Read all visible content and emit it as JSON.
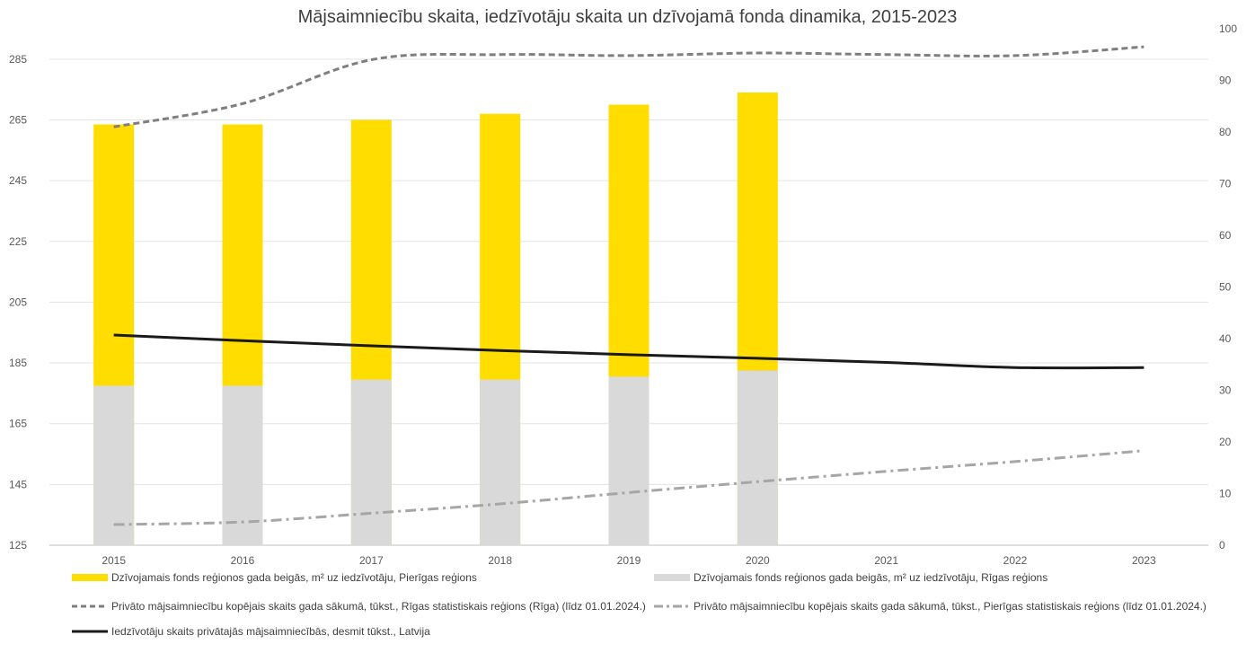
{
  "chart_data": {
    "type": "bar",
    "title": "Mājsaimniecību skaita, iedzīvotāju skaita un dzīvojamā fonda dinamika, 2015-2023",
    "categories": [
      "2015",
      "2016",
      "2017",
      "2018",
      "2019",
      "2020",
      "2021",
      "2022",
      "2023"
    ],
    "y_left": {
      "min": 125,
      "max": 295,
      "ticks": [
        125,
        145,
        165,
        185,
        205,
        225,
        245,
        265,
        285
      ]
    },
    "y_right": {
      "min": 0,
      "max": 100,
      "ticks": [
        0,
        10,
        20,
        30,
        40,
        50,
        60,
        70,
        80,
        90,
        100
      ]
    },
    "grid": true,
    "legend_position": "bottom",
    "series": [
      {
        "name": "Dzīvojamais fonds reģionos gada beigās, m² uz iedzīvotāju, Pierīgas reģions",
        "type": "bar",
        "axis": "left",
        "color": "#FFDD00",
        "values": [
          263.5,
          263.5,
          265,
          267,
          270,
          274,
          null,
          null,
          null
        ]
      },
      {
        "name": "Dzīvojamais fonds reģionos gada beigās, m² uz iedzīvotāju, Rīgas reģions",
        "type": "bar",
        "axis": "left",
        "color": "#D9D9D9",
        "values": [
          177.5,
          177.5,
          179.5,
          179.5,
          180.5,
          182.5,
          null,
          null,
          null
        ]
      },
      {
        "name": "Privāto mājsaimniecību kopējais skaits gada sākumā, tūkst., Rīgas statistiskais reģions (Rīga) (līdz 01.01.2024.)",
        "type": "line",
        "axis": "right",
        "color": "#7F7F7F",
        "dash": "dash",
        "values": [
          81,
          85.5,
          94,
          95,
          94.8,
          95.3,
          95,
          94.8,
          96.5
        ]
      },
      {
        "name": "Privāto mājsaimniecību kopējais skaits gada sākumā, tūkst., Pierīgas statistiskais reģions (līdz 01.01.2024.)",
        "type": "line",
        "axis": "right",
        "color": "#A6A6A6",
        "dash": "dashdot",
        "values": [
          4,
          4.5,
          6.2,
          8,
          10.2,
          12.3,
          14.3,
          16.2,
          18.3
        ]
      },
      {
        "name": "Iedzīvotāju skaits privātajās mājsaimniecībās, desmit tūkst., Latvija",
        "type": "line",
        "axis": "right",
        "color": "#1A1A1A",
        "dash": "solid",
        "values": [
          40.7,
          39.6,
          38.6,
          37.7,
          36.9,
          36.2,
          35.4,
          34.4,
          34.4
        ]
      }
    ]
  }
}
